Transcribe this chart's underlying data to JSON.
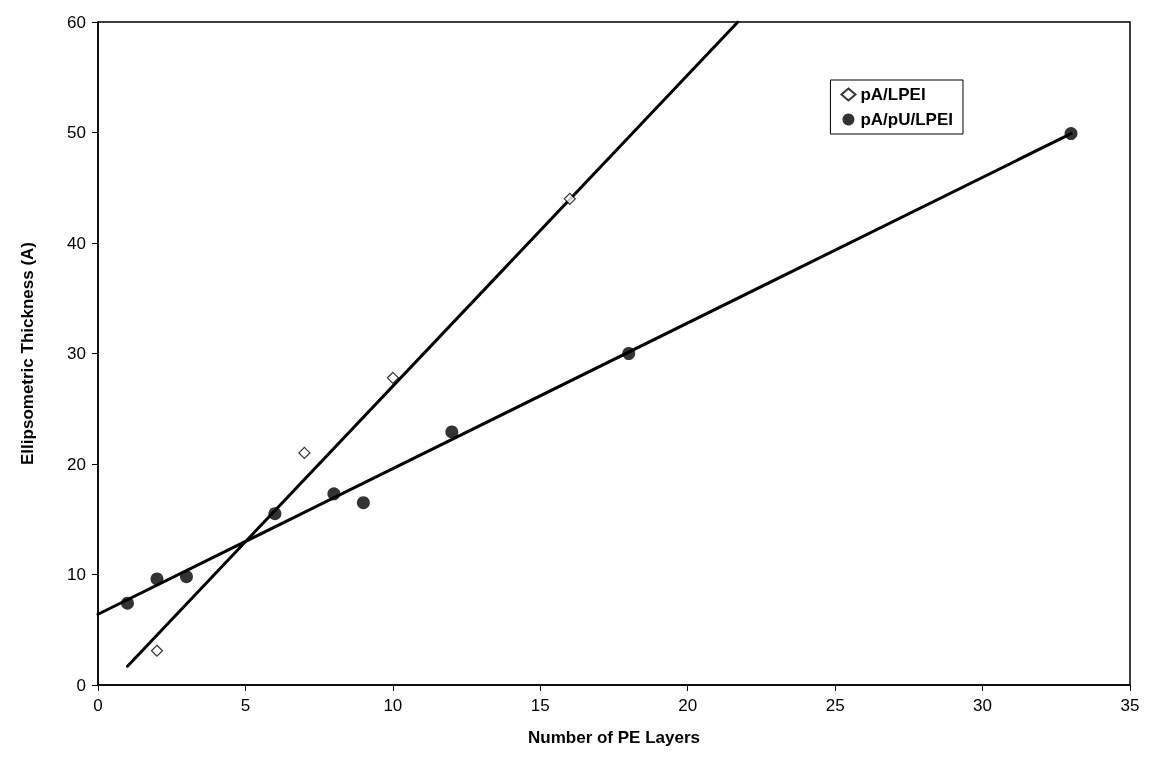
{
  "chart_data": {
    "type": "scatter",
    "xlabel": "Number of PE Layers",
    "ylabel": "Ellipsometric Thickness (A)",
    "xlim": [
      0,
      35
    ],
    "xticks": [
      0,
      5,
      10,
      15,
      20,
      25,
      30,
      35
    ],
    "ylim": [
      0,
      60
    ],
    "yticks": [
      0,
      10,
      20,
      30,
      40,
      50,
      60
    ],
    "grid": false,
    "legend": "top right",
    "series": [
      {
        "name": "pA/LPEI",
        "color": "#000000",
        "marker": "diamond",
        "x": [
          2,
          7,
          10,
          16
        ],
        "values": [
          3.1,
          21,
          27.8,
          44
        ]
      },
      {
        "name": "pA/pU/LPEI",
        "color": "#000000",
        "marker": "circle",
        "x": [
          1,
          2,
          3,
          6,
          8,
          9,
          12,
          18,
          33
        ],
        "values": [
          7.4,
          9.6,
          9.8,
          15.5,
          17.3,
          16.5,
          22.9,
          30,
          49.9
        ]
      },
      {
        "type": "line",
        "color": "#000000",
        "marker": "none",
        "x": [
          1,
          21.7
        ],
        "values": [
          1.7,
          60
        ]
      },
      {
        "type": "line",
        "color": "#000000",
        "marker": "none",
        "x": [
          0,
          33
        ],
        "values": [
          6.4,
          49.9
        ]
      }
    ]
  }
}
